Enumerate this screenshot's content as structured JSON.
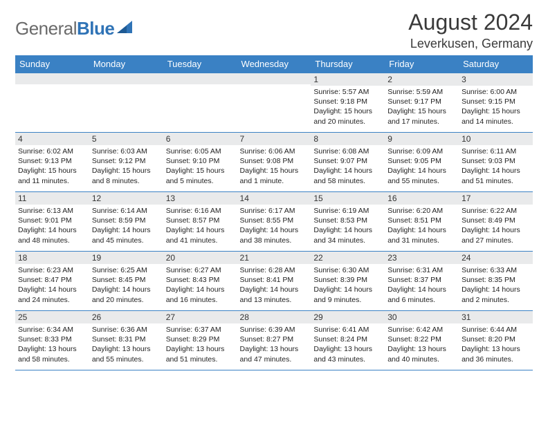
{
  "logo": {
    "text1": "General",
    "text2": "Blue"
  },
  "title": "August 2024",
  "location": "Leverkusen, Germany",
  "day_headers": [
    "Sunday",
    "Monday",
    "Tuesday",
    "Wednesday",
    "Thursday",
    "Friday",
    "Saturday"
  ],
  "colors": {
    "header_bg": "#3a81c4",
    "header_text": "#ffffff",
    "daynum_bg": "#e9eaeb",
    "border": "#3a81c4",
    "logo_gray": "#6a6a6a",
    "logo_blue": "#2f73b6"
  },
  "weeks": [
    [
      {
        "n": "",
        "lines": []
      },
      {
        "n": "",
        "lines": []
      },
      {
        "n": "",
        "lines": []
      },
      {
        "n": "",
        "lines": []
      },
      {
        "n": "1",
        "lines": [
          "Sunrise: 5:57 AM",
          "Sunset: 9:18 PM",
          "Daylight: 15 hours and 20 minutes."
        ]
      },
      {
        "n": "2",
        "lines": [
          "Sunrise: 5:59 AM",
          "Sunset: 9:17 PM",
          "Daylight: 15 hours and 17 minutes."
        ]
      },
      {
        "n": "3",
        "lines": [
          "Sunrise: 6:00 AM",
          "Sunset: 9:15 PM",
          "Daylight: 15 hours and 14 minutes."
        ]
      }
    ],
    [
      {
        "n": "4",
        "lines": [
          "Sunrise: 6:02 AM",
          "Sunset: 9:13 PM",
          "Daylight: 15 hours and 11 minutes."
        ]
      },
      {
        "n": "5",
        "lines": [
          "Sunrise: 6:03 AM",
          "Sunset: 9:12 PM",
          "Daylight: 15 hours and 8 minutes."
        ]
      },
      {
        "n": "6",
        "lines": [
          "Sunrise: 6:05 AM",
          "Sunset: 9:10 PM",
          "Daylight: 15 hours and 5 minutes."
        ]
      },
      {
        "n": "7",
        "lines": [
          "Sunrise: 6:06 AM",
          "Sunset: 9:08 PM",
          "Daylight: 15 hours and 1 minute."
        ]
      },
      {
        "n": "8",
        "lines": [
          "Sunrise: 6:08 AM",
          "Sunset: 9:07 PM",
          "Daylight: 14 hours and 58 minutes."
        ]
      },
      {
        "n": "9",
        "lines": [
          "Sunrise: 6:09 AM",
          "Sunset: 9:05 PM",
          "Daylight: 14 hours and 55 minutes."
        ]
      },
      {
        "n": "10",
        "lines": [
          "Sunrise: 6:11 AM",
          "Sunset: 9:03 PM",
          "Daylight: 14 hours and 51 minutes."
        ]
      }
    ],
    [
      {
        "n": "11",
        "lines": [
          "Sunrise: 6:13 AM",
          "Sunset: 9:01 PM",
          "Daylight: 14 hours and 48 minutes."
        ]
      },
      {
        "n": "12",
        "lines": [
          "Sunrise: 6:14 AM",
          "Sunset: 8:59 PM",
          "Daylight: 14 hours and 45 minutes."
        ]
      },
      {
        "n": "13",
        "lines": [
          "Sunrise: 6:16 AM",
          "Sunset: 8:57 PM",
          "Daylight: 14 hours and 41 minutes."
        ]
      },
      {
        "n": "14",
        "lines": [
          "Sunrise: 6:17 AM",
          "Sunset: 8:55 PM",
          "Daylight: 14 hours and 38 minutes."
        ]
      },
      {
        "n": "15",
        "lines": [
          "Sunrise: 6:19 AM",
          "Sunset: 8:53 PM",
          "Daylight: 14 hours and 34 minutes."
        ]
      },
      {
        "n": "16",
        "lines": [
          "Sunrise: 6:20 AM",
          "Sunset: 8:51 PM",
          "Daylight: 14 hours and 31 minutes."
        ]
      },
      {
        "n": "17",
        "lines": [
          "Sunrise: 6:22 AM",
          "Sunset: 8:49 PM",
          "Daylight: 14 hours and 27 minutes."
        ]
      }
    ],
    [
      {
        "n": "18",
        "lines": [
          "Sunrise: 6:23 AM",
          "Sunset: 8:47 PM",
          "Daylight: 14 hours and 24 minutes."
        ]
      },
      {
        "n": "19",
        "lines": [
          "Sunrise: 6:25 AM",
          "Sunset: 8:45 PM",
          "Daylight: 14 hours and 20 minutes."
        ]
      },
      {
        "n": "20",
        "lines": [
          "Sunrise: 6:27 AM",
          "Sunset: 8:43 PM",
          "Daylight: 14 hours and 16 minutes."
        ]
      },
      {
        "n": "21",
        "lines": [
          "Sunrise: 6:28 AM",
          "Sunset: 8:41 PM",
          "Daylight: 14 hours and 13 minutes."
        ]
      },
      {
        "n": "22",
        "lines": [
          "Sunrise: 6:30 AM",
          "Sunset: 8:39 PM",
          "Daylight: 14 hours and 9 minutes."
        ]
      },
      {
        "n": "23",
        "lines": [
          "Sunrise: 6:31 AM",
          "Sunset: 8:37 PM",
          "Daylight: 14 hours and 6 minutes."
        ]
      },
      {
        "n": "24",
        "lines": [
          "Sunrise: 6:33 AM",
          "Sunset: 8:35 PM",
          "Daylight: 14 hours and 2 minutes."
        ]
      }
    ],
    [
      {
        "n": "25",
        "lines": [
          "Sunrise: 6:34 AM",
          "Sunset: 8:33 PM",
          "Daylight: 13 hours and 58 minutes."
        ]
      },
      {
        "n": "26",
        "lines": [
          "Sunrise: 6:36 AM",
          "Sunset: 8:31 PM",
          "Daylight: 13 hours and 55 minutes."
        ]
      },
      {
        "n": "27",
        "lines": [
          "Sunrise: 6:37 AM",
          "Sunset: 8:29 PM",
          "Daylight: 13 hours and 51 minutes."
        ]
      },
      {
        "n": "28",
        "lines": [
          "Sunrise: 6:39 AM",
          "Sunset: 8:27 PM",
          "Daylight: 13 hours and 47 minutes."
        ]
      },
      {
        "n": "29",
        "lines": [
          "Sunrise: 6:41 AM",
          "Sunset: 8:24 PM",
          "Daylight: 13 hours and 43 minutes."
        ]
      },
      {
        "n": "30",
        "lines": [
          "Sunrise: 6:42 AM",
          "Sunset: 8:22 PM",
          "Daylight: 13 hours and 40 minutes."
        ]
      },
      {
        "n": "31",
        "lines": [
          "Sunrise: 6:44 AM",
          "Sunset: 8:20 PM",
          "Daylight: 13 hours and 36 minutes."
        ]
      }
    ]
  ]
}
